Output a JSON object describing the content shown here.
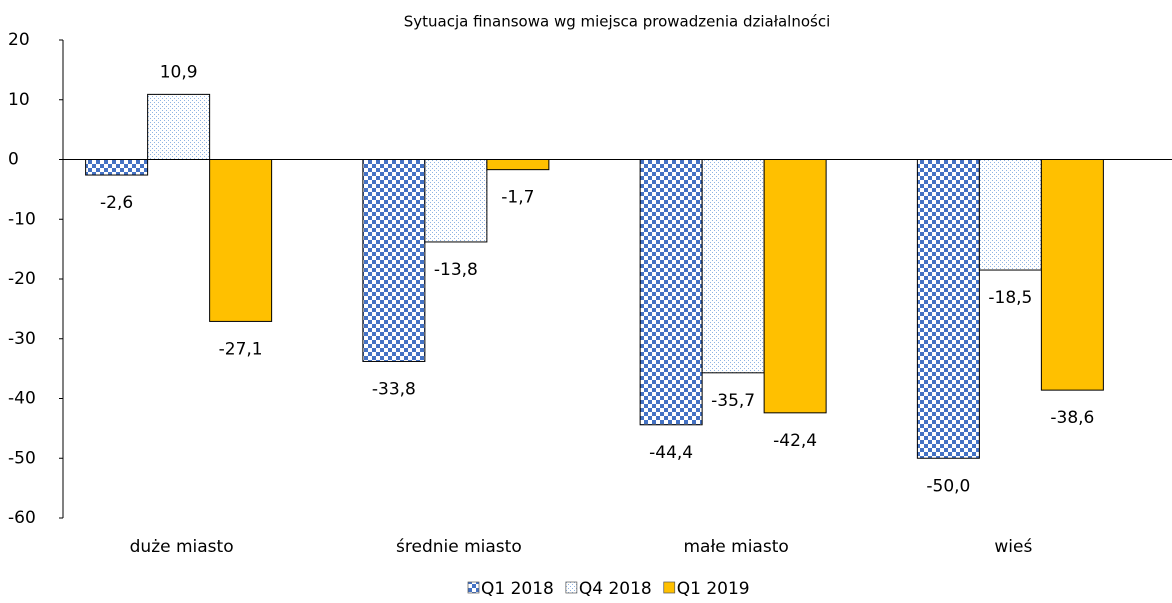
{
  "chart_data": {
    "type": "bar",
    "title": "Sytuacja finansowa wg miejsca prowadzenia działalności",
    "categories": [
      "duże miasto",
      "średnie miasto",
      "małe miasto",
      "wieś"
    ],
    "series": [
      {
        "name": "Q1 2018",
        "color": "#4472c4",
        "pattern": "checker",
        "values": [
          -2.6,
          -33.8,
          -44.4,
          -50.0
        ],
        "value_labels": [
          "-2,6",
          "-33,8",
          "-44,4",
          "-50,0"
        ]
      },
      {
        "name": "Q4 2018",
        "color": "#8fb4e3",
        "pattern": "dots",
        "values": [
          10.9,
          -13.8,
          -35.7,
          -18.5
        ],
        "value_labels": [
          "10,9",
          "-13,8",
          "-35,7",
          "-18,5"
        ]
      },
      {
        "name": "Q1 2019",
        "color": "#ffc000",
        "pattern": "solid",
        "values": [
          -27.1,
          -1.7,
          -42.4,
          -38.6
        ],
        "value_labels": [
          "-27,1",
          "-1,7",
          "-42,4",
          "-38,6"
        ]
      }
    ],
    "ylim": [
      -60,
      20
    ],
    "yticks": [
      -60,
      -50,
      -40,
      -30,
      -20,
      -10,
      0,
      10,
      20
    ],
    "legend": "bottom"
  }
}
